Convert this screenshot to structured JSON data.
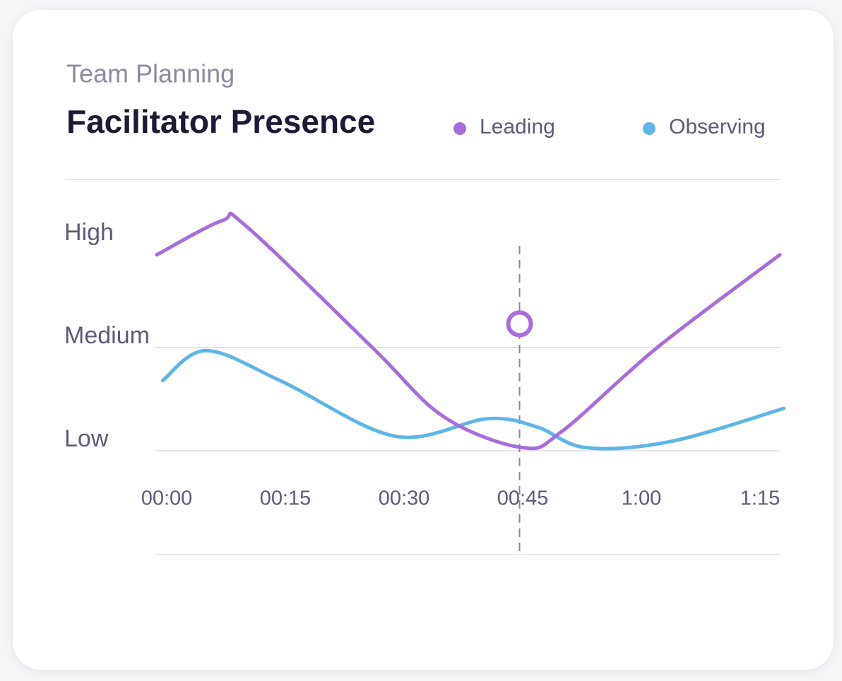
{
  "chart_data": {
    "type": "line",
    "subtitle": "Team Planning",
    "title": "Facilitator Presence",
    "xlim": [
      -1.25,
      78
    ],
    "ylim": [
      0,
      3.6
    ],
    "xticks": [
      {
        "value": 0,
        "label": "00:00"
      },
      {
        "value": 15,
        "label": "00:15"
      },
      {
        "value": 30,
        "label": "00:30"
      },
      {
        "value": 45,
        "label": "00:45"
      },
      {
        "value": 60,
        "label": "1:00"
      },
      {
        "value": 75,
        "label": "1:15"
      }
    ],
    "yticks": [
      {
        "value": 1,
        "label": "Low"
      },
      {
        "value": 2,
        "label": "Medium"
      },
      {
        "value": 3,
        "label": "High"
      }
    ],
    "grid": true,
    "series": [
      {
        "name": "Leading",
        "color": "#a66ddb",
        "x": [
          -1.25,
          7,
          10,
          26,
          35,
          45,
          50,
          62,
          77.5
        ],
        "values": [
          2.9,
          3.23,
          3.18,
          2.0,
          1.33,
          1.03,
          1.19,
          2.0,
          2.9
        ]
      },
      {
        "name": "Observing",
        "color": "#5fb5e6",
        "x": [
          -0.5,
          5,
          14.6,
          28.9,
          40.5,
          46.8,
          53,
          63.75,
          78
        ],
        "values": [
          1.68,
          1.97,
          1.67,
          1.14,
          1.31,
          1.23,
          1.03,
          1.09,
          1.41
        ]
      }
    ],
    "marker": {
      "x": 44.6,
      "value": 2.23
    }
  }
}
